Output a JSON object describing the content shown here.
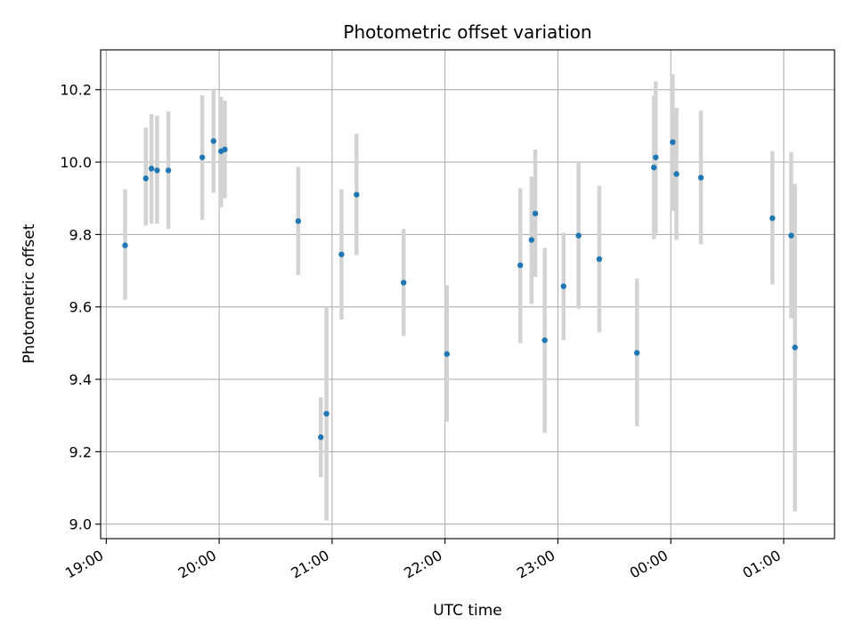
{
  "chart_data": {
    "type": "scatter",
    "title": "Photometric offset variation",
    "xlabel": "UTC time",
    "ylabel": "Photometric offset",
    "xlim": [
      "18:57",
      "01:27"
    ],
    "ylim": [
      8.96,
      10.31
    ],
    "x_ticks": [
      "19:00",
      "20:00",
      "21:00",
      "22:00",
      "23:00",
      "00:00",
      "01:00"
    ],
    "y_ticks": [
      "9.0",
      "9.2",
      "9.4",
      "9.6",
      "9.8",
      "10.0",
      "10.2"
    ],
    "grid": true,
    "colors": {
      "point": "#1f77b4",
      "errorbar": "#d3d3d3",
      "grid": "#b0b0b0"
    },
    "points": [
      {
        "x": "19:10",
        "y": 9.77,
        "ylo": 9.62,
        "yhi": 9.925
      },
      {
        "x": "19:21",
        "y": 9.955,
        "ylo": 9.825,
        "yhi": 10.095
      },
      {
        "x": "19:24",
        "y": 9.982,
        "ylo": 9.83,
        "yhi": 10.133
      },
      {
        "x": "19:27",
        "y": 9.977,
        "ylo": 9.83,
        "yhi": 10.128
      },
      {
        "x": "19:33",
        "y": 9.977,
        "ylo": 9.815,
        "yhi": 10.14
      },
      {
        "x": "19:51",
        "y": 10.013,
        "ylo": 9.84,
        "yhi": 10.185
      },
      {
        "x": "19:57",
        "y": 10.058,
        "ylo": 9.915,
        "yhi": 10.203
      },
      {
        "x": "20:01",
        "y": 10.03,
        "ylo": 9.875,
        "yhi": 10.18
      },
      {
        "x": "20:03",
        "y": 10.035,
        "ylo": 9.9,
        "yhi": 10.17
      },
      {
        "x": "20:42",
        "y": 9.837,
        "ylo": 9.688,
        "yhi": 9.987
      },
      {
        "x": "20:54",
        "y": 9.24,
        "ylo": 9.13,
        "yhi": 9.35
      },
      {
        "x": "20:57",
        "y": 9.305,
        "ylo": 9.01,
        "yhi": 9.6
      },
      {
        "x": "21:05",
        "y": 9.745,
        "ylo": 9.565,
        "yhi": 9.925
      },
      {
        "x": "21:13",
        "y": 9.91,
        "ylo": 9.743,
        "yhi": 10.078
      },
      {
        "x": "21:38",
        "y": 9.667,
        "ylo": 9.52,
        "yhi": 9.815
      },
      {
        "x": "22:01",
        "y": 9.47,
        "ylo": 9.283,
        "yhi": 9.66
      },
      {
        "x": "22:40",
        "y": 9.715,
        "ylo": 9.5,
        "yhi": 9.928
      },
      {
        "x": "22:46",
        "y": 9.785,
        "ylo": 9.608,
        "yhi": 9.96
      },
      {
        "x": "22:48",
        "y": 9.858,
        "ylo": 9.683,
        "yhi": 10.035
      },
      {
        "x": "22:53",
        "y": 9.508,
        "ylo": 9.252,
        "yhi": 9.763
      },
      {
        "x": "23:03",
        "y": 9.657,
        "ylo": 9.508,
        "yhi": 9.805
      },
      {
        "x": "23:11",
        "y": 9.797,
        "ylo": 9.595,
        "yhi": 9.998
      },
      {
        "x": "23:22",
        "y": 9.732,
        "ylo": 9.53,
        "yhi": 9.935
      },
      {
        "x": "23:42",
        "y": 9.473,
        "ylo": 9.27,
        "yhi": 9.678
      },
      {
        "x": "23:51",
        "y": 9.985,
        "ylo": 9.787,
        "yhi": 10.183
      },
      {
        "x": "23:52",
        "y": 10.013,
        "ylo": 9.803,
        "yhi": 10.223
      },
      {
        "x": "00:01",
        "y": 10.055,
        "ylo": 9.865,
        "yhi": 10.243
      },
      {
        "x": "00:03",
        "y": 9.967,
        "ylo": 9.785,
        "yhi": 10.15
      },
      {
        "x": "00:16",
        "y": 9.957,
        "ylo": 9.773,
        "yhi": 10.142
      },
      {
        "x": "00:54",
        "y": 9.845,
        "ylo": 9.662,
        "yhi": 10.03
      },
      {
        "x": "01:04",
        "y": 9.797,
        "ylo": 9.568,
        "yhi": 10.028
      },
      {
        "x": "01:06",
        "y": 9.488,
        "ylo": 9.035,
        "yhi": 9.94
      }
    ]
  }
}
